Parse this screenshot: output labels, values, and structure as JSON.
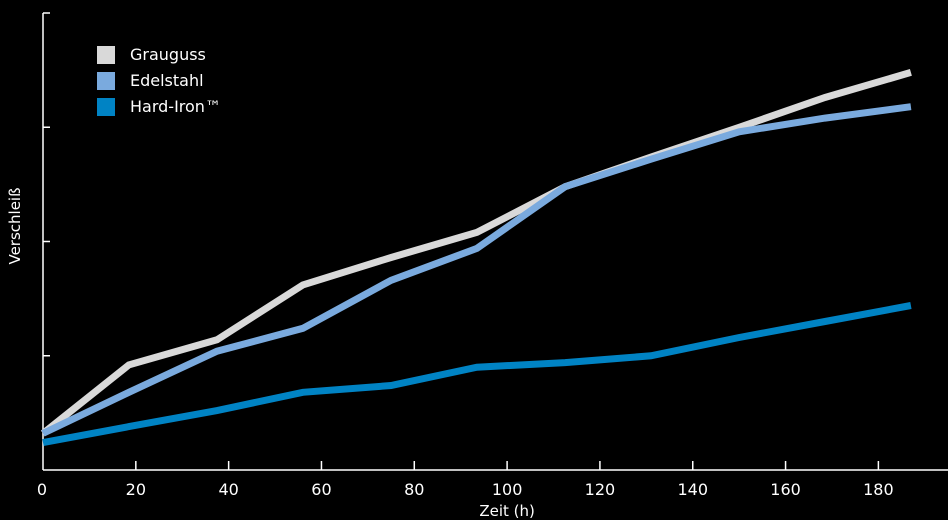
{
  "chart_data": {
    "type": "line",
    "xlabel": "Zeit (h)",
    "ylabel": "Verschleiß",
    "xlim": [
      0,
      195
    ],
    "ylim": [
      0,
      100
    ],
    "xticks": [
      0,
      20,
      40,
      60,
      80,
      100,
      120,
      140,
      160,
      180
    ],
    "yticks": [
      25,
      50,
      75,
      100
    ],
    "show_ytick_labels": false,
    "grid": false,
    "legend_position": "top-left",
    "series": [
      {
        "name": "Grauguss",
        "color": "#d9d9d9",
        "points": [
          [
            0,
            8
          ],
          [
            18.5,
            23
          ],
          [
            37.5,
            28.5
          ],
          [
            56,
            40.5
          ],
          [
            75,
            46.5
          ],
          [
            93.5,
            52
          ],
          [
            112.5,
            62
          ],
          [
            131,
            68.5
          ],
          [
            150,
            75
          ],
          [
            168.5,
            81.5
          ],
          [
            187,
            87
          ]
        ]
      },
      {
        "name": "Edelstahl",
        "color": "#7aaade",
        "points": [
          [
            0,
            8
          ],
          [
            18.5,
            17
          ],
          [
            37.5,
            26
          ],
          [
            56,
            31
          ],
          [
            75,
            41.5
          ],
          [
            93.5,
            48.5
          ],
          [
            112.5,
            62
          ],
          [
            131,
            68
          ],
          [
            150,
            74
          ],
          [
            168.5,
            77
          ],
          [
            187,
            79.5
          ]
        ]
      },
      {
        "name": "Hard-Iron™",
        "color": "#0083c4",
        "points": [
          [
            0,
            6
          ],
          [
            18.5,
            9.5
          ],
          [
            37.5,
            13
          ],
          [
            56,
            17
          ],
          [
            75,
            18.5
          ],
          [
            93.5,
            22.5
          ],
          [
            112.5,
            23.5
          ],
          [
            131,
            25
          ],
          [
            150,
            29
          ],
          [
            168.5,
            32.5
          ],
          [
            187,
            36
          ]
        ]
      }
    ]
  }
}
